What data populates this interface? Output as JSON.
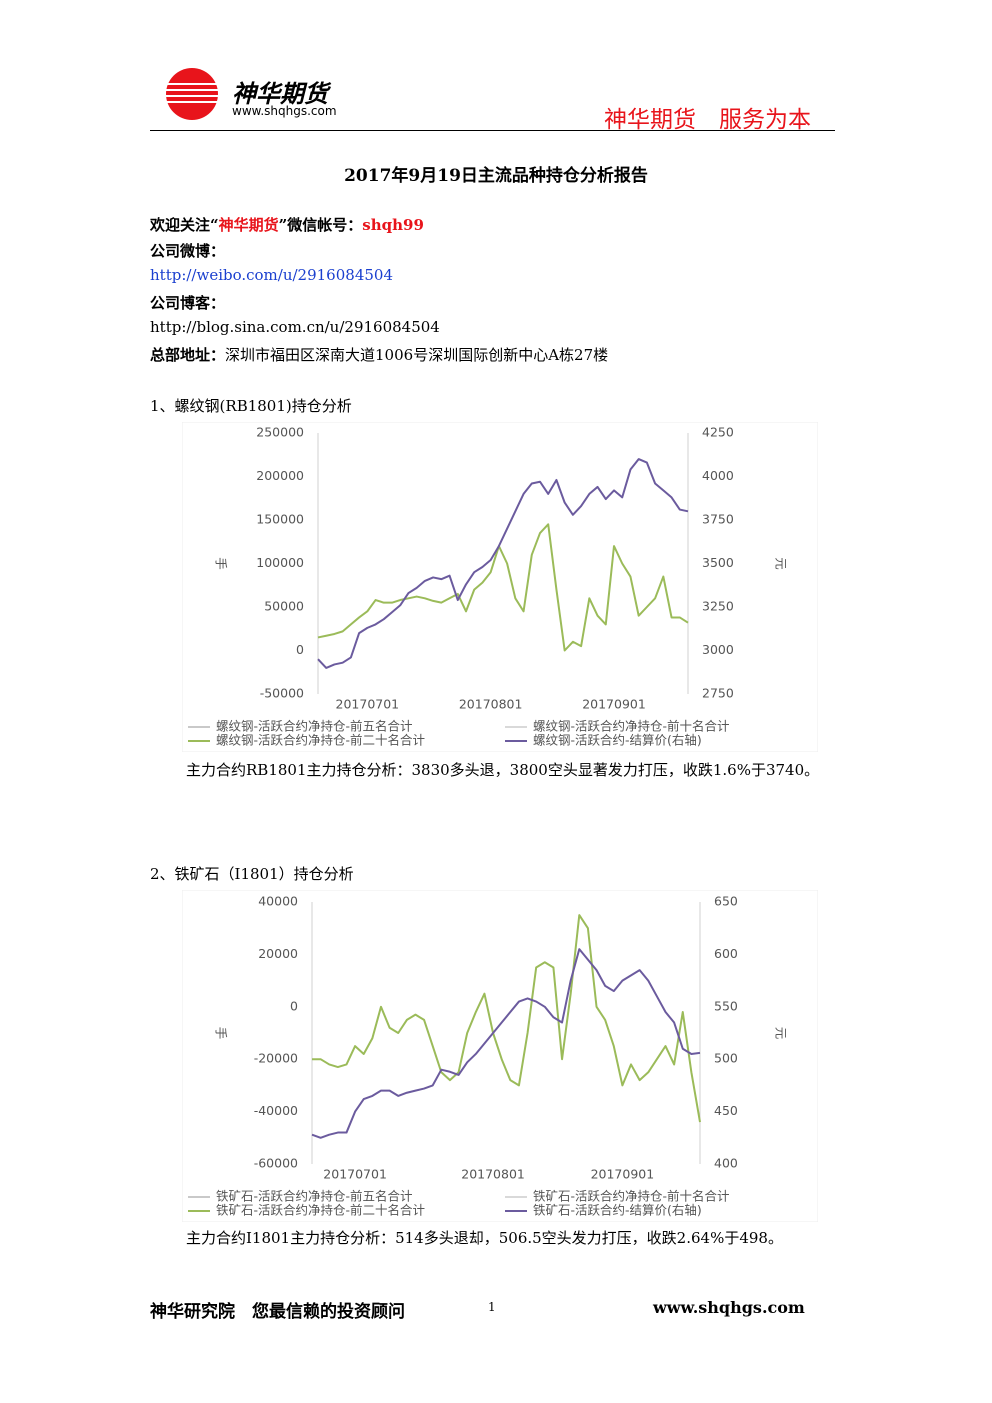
{
  "header": {
    "brand": "神华期货",
    "website": "www.shqhgs.com",
    "slogan": "神华期货　服务为本"
  },
  "title": "2017年9月19日主流品种持仓分析报告",
  "contact": {
    "wechat_prefix": "欢迎关注“",
    "wechat_brand": "神华期货",
    "wechat_middle": "”微信帐号：",
    "wechat_id": "shqh99",
    "weibo_label": "公司微博：",
    "weibo_url": "http://weibo.com/u/2916084504",
    "blog_label": "公司博客：",
    "blog_url": "http://blog.sina.com.cn/u/2916084504",
    "address_label": "总部地址：",
    "address": "深圳市福田区深南大道1006号深圳国际创新中心A栋27楼"
  },
  "sections": [
    {
      "heading": "1、螺纹钢(RB1801)持仓分析",
      "analysis": "主力合约RB1801主力持仓分析：3830多头退，3800空头显著发力打压，收跌1.6%于3740。"
    },
    {
      "heading": "2、铁矿石（I1801）持仓分析",
      "analysis": "主力合约I1801主力持仓分析：514多头退却，506.5空头发力打压，收跌2.64%于498。"
    }
  ],
  "footer": {
    "left": "神华研究院　您最信赖的投资顾问",
    "page": "1",
    "website": "www.shqhgs.com"
  },
  "chart_data": [
    {
      "type": "line",
      "y_label": "手",
      "y2_label": "元",
      "categories": [
        null,
        null,
        null,
        null,
        null,
        null,
        "20170701",
        null,
        null,
        null,
        null,
        null,
        null,
        null,
        null,
        null,
        null,
        null,
        null,
        null,
        null,
        "20170801",
        null,
        null,
        null,
        null,
        null,
        null,
        null,
        null,
        null,
        null,
        null,
        null,
        null,
        null,
        "20170901",
        null,
        null,
        null,
        null,
        null,
        null,
        null,
        null,
        null
      ],
      "ylim": [
        -50000,
        250000
      ],
      "yticks": [
        -50000,
        0,
        50000,
        100000,
        150000,
        200000,
        250000
      ],
      "y2lim": [
        2750,
        4250
      ],
      "y2ticks": [
        2750,
        3000,
        3250,
        3500,
        3750,
        4000,
        4250
      ],
      "series": [
        {
          "name": "螺纹钢-活跃合约净持仓-前五名合计",
          "color": "#c9c9c9",
          "values": [
            null,
            null,
            null,
            null,
            null,
            null,
            null,
            null,
            null,
            null,
            null,
            null,
            null,
            null,
            null,
            null,
            null,
            null,
            null,
            null,
            null,
            null,
            null,
            null,
            null,
            null,
            null,
            null,
            null,
            null,
            null,
            null,
            null,
            null,
            null,
            null,
            null,
            null,
            null,
            null,
            null,
            null,
            null,
            null,
            null,
            null
          ]
        },
        {
          "name": "螺纹钢-活跃合约净持仓-前十名合计",
          "color": "#d9d9d9",
          "values": [
            null,
            null,
            null,
            null,
            null,
            null,
            null,
            null,
            null,
            null,
            null,
            null,
            null,
            null,
            null,
            null,
            null,
            null,
            null,
            null,
            null,
            null,
            null,
            null,
            null,
            null,
            null,
            null,
            null,
            null,
            null,
            null,
            null,
            null,
            null,
            null,
            null,
            null,
            null,
            null,
            null,
            null,
            null,
            null,
            null,
            null
          ]
        },
        {
          "name": "螺纹钢-活跃合约净持仓-前二十名合计",
          "color": "#9bbb59",
          "values": [
            15000,
            17000,
            19000,
            22000,
            30000,
            38000,
            45000,
            58000,
            55000,
            55000,
            58000,
            60000,
            62000,
            60000,
            57000,
            55000,
            60000,
            65000,
            45000,
            70000,
            78000,
            90000,
            120000,
            100000,
            60000,
            45000,
            110000,
            135000,
            145000,
            70000,
            0,
            10000,
            5000,
            60000,
            40000,
            30000,
            120000,
            100000,
            85000,
            40000,
            50000,
            60000,
            85000,
            38000,
            38000,
            32000
          ]
        },
        {
          "name": "螺纹钢-活跃合约-结算价(右轴)",
          "color": "#6b5b9e",
          "axis": "y2",
          "values": [
            2950,
            2900,
            2920,
            2930,
            2960,
            3100,
            3130,
            3150,
            3180,
            3220,
            3260,
            3330,
            3360,
            3400,
            3420,
            3410,
            3430,
            3290,
            3380,
            3450,
            3480,
            3520,
            3600,
            3700,
            3800,
            3900,
            3960,
            3970,
            3900,
            3980,
            3850,
            3780,
            3830,
            3900,
            3940,
            3870,
            3920,
            3880,
            4040,
            4100,
            4080,
            3960,
            3920,
            3880,
            3810,
            3800
          ]
        }
      ]
    },
    {
      "type": "line",
      "y_label": "手",
      "y2_label": "元",
      "categories": [
        null,
        null,
        null,
        null,
        null,
        "20170701",
        null,
        null,
        null,
        null,
        null,
        null,
        null,
        null,
        null,
        null,
        null,
        null,
        null,
        null,
        null,
        "20170801",
        null,
        null,
        null,
        null,
        null,
        null,
        null,
        null,
        null,
        null,
        null,
        null,
        null,
        null,
        "20170901",
        null,
        null,
        null,
        null,
        null,
        null,
        null,
        null,
        null
      ],
      "ylim": [
        -60000,
        40000
      ],
      "yticks": [
        -60000,
        -40000,
        -20000,
        0,
        20000,
        40000
      ],
      "y2lim": [
        400,
        650
      ],
      "y2ticks": [
        400,
        450,
        500,
        550,
        600,
        650
      ],
      "series": [
        {
          "name": "铁矿石-活跃合约净持仓-前五名合计",
          "color": "#c9c9c9",
          "values": [
            null,
            null,
            null,
            null,
            null,
            null,
            null,
            null,
            null,
            null,
            null,
            null,
            null,
            null,
            null,
            null,
            null,
            null,
            null,
            null,
            null,
            null,
            null,
            null,
            null,
            null,
            null,
            null,
            null,
            null,
            null,
            null,
            null,
            null,
            null,
            null,
            null,
            null,
            null,
            null,
            null,
            null,
            null,
            null,
            null,
            null
          ]
        },
        {
          "name": "铁矿石-活跃合约净持仓-前十名合计",
          "color": "#d9d9d9",
          "values": [
            null,
            null,
            null,
            null,
            null,
            null,
            null,
            null,
            null,
            null,
            null,
            null,
            null,
            null,
            null,
            null,
            null,
            null,
            null,
            null,
            null,
            null,
            null,
            null,
            null,
            null,
            null,
            null,
            null,
            null,
            null,
            null,
            null,
            null,
            null,
            null,
            null,
            null,
            null,
            null,
            null,
            null,
            null,
            null,
            null,
            null
          ]
        },
        {
          "name": "铁矿石-活跃合约净持仓-前二十名合计",
          "color": "#9bbb59",
          "values": [
            -20000,
            -20000,
            -22000,
            -23000,
            -22000,
            -15000,
            -18000,
            -12000,
            0,
            -8000,
            -10000,
            -5000,
            -3000,
            -5000,
            -15000,
            -25000,
            -28000,
            -25000,
            -10000,
            -2000,
            5000,
            -10000,
            -20000,
            -28000,
            -30000,
            -10000,
            15000,
            17000,
            15000,
            -20000,
            5000,
            35000,
            30000,
            0,
            -5000,
            -15000,
            -30000,
            -22000,
            -28000,
            -25000,
            -20000,
            -15000,
            -22000,
            -2000,
            -25000,
            -44000
          ]
        },
        {
          "name": "铁矿石-活跃合约-结算价(右轴)",
          "color": "#6b5b9e",
          "axis": "y2",
          "values": [
            428,
            425,
            428,
            430,
            430,
            450,
            462,
            465,
            470,
            470,
            465,
            468,
            470,
            472,
            475,
            490,
            488,
            485,
            497,
            505,
            515,
            525,
            535,
            545,
            555,
            558,
            555,
            550,
            540,
            535,
            575,
            605,
            595,
            585,
            570,
            565,
            575,
            580,
            585,
            575,
            560,
            545,
            535,
            510,
            505,
            506
          ]
        }
      ]
    }
  ]
}
